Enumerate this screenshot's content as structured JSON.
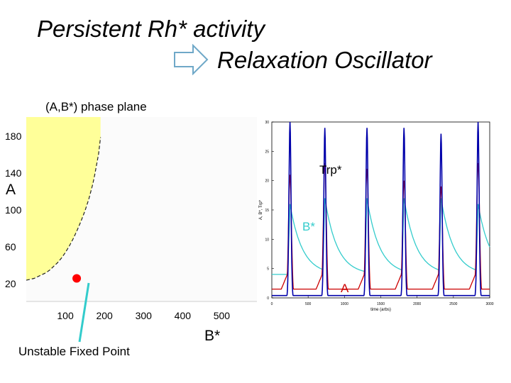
{
  "slide": {
    "title_line1": "Persistent Rh* activity",
    "title_line2": "Relaxation Oscillator"
  },
  "phase_plane": {
    "label": "(A,B*) phase plane",
    "y_axis_label": "A",
    "x_axis_label": "B*",
    "fixed_point_label": "Unstable Fixed Point",
    "region_color": "#ffff99",
    "fixed_point_color": "#ff0000",
    "pointer_color": "#33cccc"
  },
  "time_series": {
    "trp_label": "Trp*",
    "b_label": "B*",
    "a_label": "A",
    "trp_color": "#0000aa",
    "b_color": "#33cccc",
    "a_color": "#cc0000"
  },
  "chart_data": [
    {
      "type": "area",
      "xticks": [
        100,
        200,
        300,
        400,
        500
      ],
      "yticks": [
        20,
        60,
        100,
        140,
        180
      ],
      "xlabel": "B*",
      "ylabel": "A",
      "xlim": [
        0,
        590
      ],
      "ylim": [
        0,
        200
      ],
      "boundary_curve": {
        "x": [
          0,
          10,
          20,
          30,
          40,
          50,
          60,
          70,
          80,
          90,
          100,
          110,
          120,
          130,
          140,
          150,
          160,
          170,
          175,
          185,
          190
        ],
        "y": [
          23,
          24,
          25,
          27,
          29,
          31,
          34,
          38,
          42,
          47,
          53,
          60,
          68,
          77,
          87,
          98,
          111,
          127,
          137,
          160,
          178
        ]
      },
      "fixed_point": {
        "x": 129,
        "y": 25
      }
    },
    {
      "type": "line",
      "xlabel": "time (arbs)",
      "ylabel": "A, B*, Trp*",
      "xticks": [
        0,
        500,
        1000,
        1500,
        2000,
        2500,
        3000
      ],
      "yticks": [
        0,
        5,
        10,
        15,
        20,
        25,
        30
      ],
      "xlim": [
        0,
        3000
      ],
      "ylim": [
        0,
        30
      ],
      "spike_times": [
        250,
        730,
        1310,
        1820,
        2330,
        2840
      ],
      "series": [
        {
          "name": "Trp*",
          "spike_peaks": [
            30,
            29,
            29,
            29,
            28,
            30
          ],
          "baseline": 0.4
        },
        {
          "name": "B*",
          "spike_peaks": [
            16,
            17,
            17,
            17,
            17,
            16
          ],
          "baseline": 4
        },
        {
          "name": "A",
          "spike_peaks": [
            21,
            23,
            22,
            20,
            19,
            23
          ],
          "baseline": 1.5
        }
      ]
    }
  ]
}
